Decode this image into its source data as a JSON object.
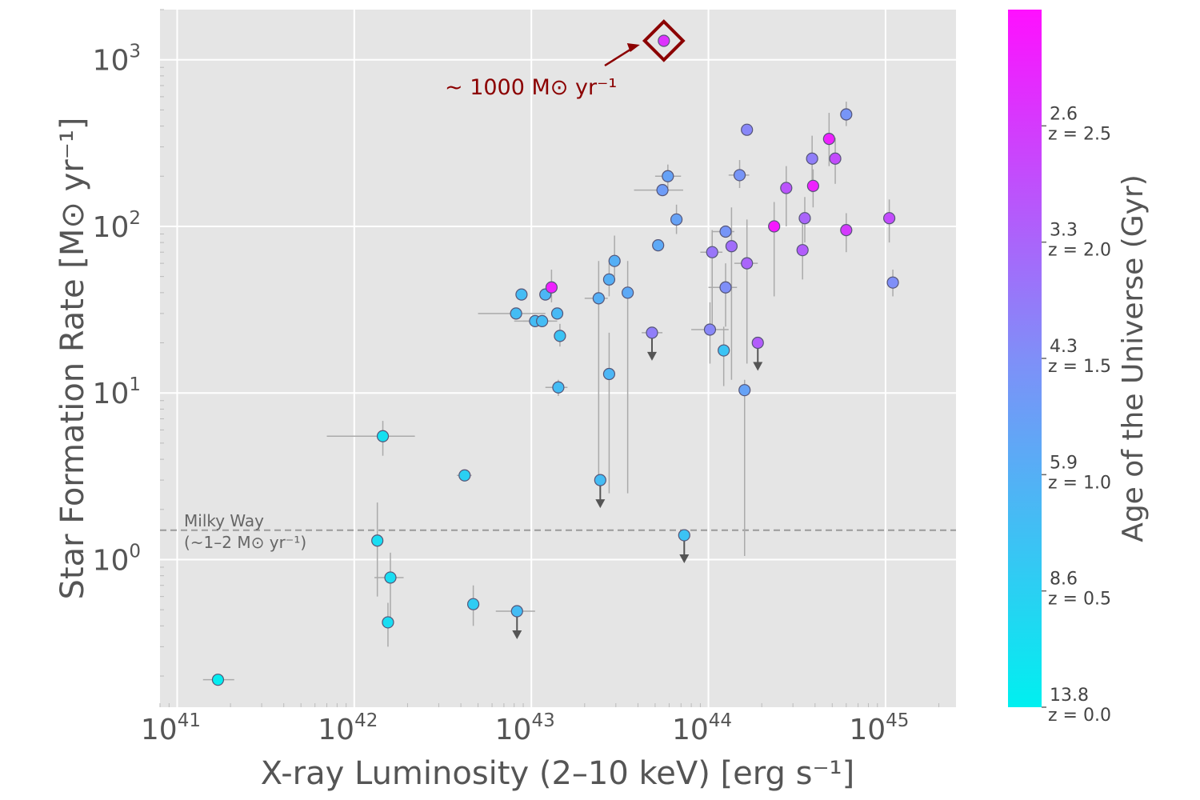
{
  "chart_data": {
    "type": "scatter",
    "xlabel": "X-ray Luminosity (2–10 keV) [erg s⁻¹]",
    "ylabel": "Star Formation Rate [M⊙ yr⁻¹]",
    "x_scale": "log",
    "y_scale": "log",
    "xlim": [
      8e+40,
      2.5e+45
    ],
    "ylim": [
      0.13,
      2000
    ],
    "grid": true,
    "x_ticks": [
      {
        "base": "10",
        "exp": "41",
        "value": 1e+41
      },
      {
        "base": "10",
        "exp": "42",
        "value": 1e+42
      },
      {
        "base": "10",
        "exp": "43",
        "value": 1e+43
      },
      {
        "base": "10",
        "exp": "44",
        "value": 1e+44
      },
      {
        "base": "10",
        "exp": "45",
        "value": 1e+45
      }
    ],
    "y_ticks": [
      {
        "base": "10",
        "exp": "0",
        "value": 1
      },
      {
        "base": "10",
        "exp": "1",
        "value": 10
      },
      {
        "base": "10",
        "exp": "2",
        "value": 100
      },
      {
        "base": "10",
        "exp": "3",
        "value": 1000
      }
    ],
    "colorbar": {
      "title": "Age of the Universe (Gyr)",
      "color_low": "#00f0f0",
      "color_mid": "#7f8ff8",
      "color_high": "#ff10ff",
      "ticks": [
        {
          "age": "13.8",
          "z": "z = 0.0",
          "z_value": 0.0
        },
        {
          "age": "8.6",
          "z": "z = 0.5",
          "z_value": 0.5
        },
        {
          "age": "5.9",
          "z": "z = 1.0",
          "z_value": 1.0
        },
        {
          "age": "4.3",
          "z": "z = 1.5",
          "z_value": 1.5
        },
        {
          "age": "3.3",
          "z": "z = 2.0",
          "z_value": 2.0
        },
        {
          "age": "2.6",
          "z": "z = 2.5",
          "z_value": 2.5
        }
      ],
      "z_range": [
        0.0,
        3.0
      ]
    },
    "reference_line": {
      "y": 1.5,
      "label_line1": "Milky Way",
      "label_line2": "(~1–2 M⊙ yr⁻¹)"
    },
    "highlight": {
      "x": 5.6e+43,
      "y": 1300,
      "label": "~ 1000 M⊙ yr⁻¹"
    },
    "points": [
      {
        "x": 1.7e+41,
        "y": 0.19,
        "z": 0.05,
        "xerr": [
          1.4e+41,
          2.1e+41
        ]
      },
      {
        "x": 1.35e+42,
        "y": 1.3,
        "z": 0.3,
        "yerr": [
          0.6,
          2.2
        ]
      },
      {
        "x": 1.45e+42,
        "y": 5.5,
        "z": 0.25,
        "xerr": [
          7e+41,
          2.2e+42
        ],
        "yerr": [
          4.2,
          6.8
        ]
      },
      {
        "x": 1.6e+42,
        "y": 0.78,
        "z": 0.3,
        "xerr": [
          1.3e+42,
          1.9e+42
        ],
        "yerr": [
          0.4,
          1.1
        ]
      },
      {
        "x": 1.55e+42,
        "y": 0.42,
        "z": 0.3,
        "yerr": [
          0.3,
          0.55
        ]
      },
      {
        "x": 4.2e+42,
        "y": 3.2,
        "z": 0.5,
        "xerr": [
          3.8e+42,
          4.6e+42
        ]
      },
      {
        "x": 4.7e+42,
        "y": 0.54,
        "z": 0.55,
        "yerr": [
          0.4,
          0.7
        ]
      },
      {
        "x": 8.3e+42,
        "y": 0.49,
        "z": 0.8,
        "xerr": [
          6.3e+42,
          1.05e+43
        ],
        "upper": true
      },
      {
        "x": 8.2e+42,
        "y": 30,
        "z": 0.8,
        "xerr": [
          5e+42,
          1.2e+43
        ]
      },
      {
        "x": 8.8e+42,
        "y": 39,
        "z": 0.8
      },
      {
        "x": 1.05e+43,
        "y": 27,
        "z": 0.8,
        "xerr": [
          8e+42,
          1.3e+43
        ]
      },
      {
        "x": 1.15e+43,
        "y": 27,
        "z": 0.8,
        "xerr": [
          9e+42,
          1.4e+43
        ]
      },
      {
        "x": 1.2e+43,
        "y": 39,
        "z": 0.9
      },
      {
        "x": 1.3e+43,
        "y": 43,
        "z": 2.8,
        "yerr": [
          35,
          55
        ]
      },
      {
        "x": 1.4e+43,
        "y": 30,
        "z": 0.85
      },
      {
        "x": 1.45e+43,
        "y": 22,
        "z": 0.7,
        "yerr": [
          19,
          26
        ]
      },
      {
        "x": 1.42e+43,
        "y": 10.8,
        "z": 0.8,
        "xerr": [
          1.2e+43,
          1.6e+43
        ],
        "yerr": [
          9.6,
          12
        ]
      },
      {
        "x": 2.4e+43,
        "y": 37,
        "z": 1.0,
        "xerr": [
          2e+43,
          2.7e+43
        ],
        "yerr": [
          3,
          62
        ]
      },
      {
        "x": 2.45e+43,
        "y": 3.0,
        "z": 0.8,
        "xerr": [
          2.3e+43,
          2.6e+43
        ],
        "upper": true
      },
      {
        "x": 2.75e+43,
        "y": 13,
        "z": 0.9,
        "yerr": [
          2.5,
          23
        ]
      },
      {
        "x": 2.75e+43,
        "y": 48,
        "z": 1.0,
        "yerr": [
          38,
          60
        ]
      },
      {
        "x": 2.95e+43,
        "y": 62,
        "z": 1.0,
        "yerr": [
          50,
          88
        ]
      },
      {
        "x": 3.5e+43,
        "y": 40,
        "z": 1.1,
        "yerr": [
          2.5,
          62
        ]
      },
      {
        "x": 4.8e+43,
        "y": 23,
        "z": 1.7,
        "xerr": [
          4.2e+43,
          5.5e+43
        ],
        "upper": true
      },
      {
        "x": 5.2e+43,
        "y": 77,
        "z": 1.1
      },
      {
        "x": 5.5e+43,
        "y": 165,
        "z": 1.3,
        "xerr": [
          3.8e+43,
          7.2e+43
        ]
      },
      {
        "x": 5.9e+43,
        "y": 200,
        "z": 1.2,
        "xerr": [
          5e+43,
          7e+43
        ],
        "yerr": [
          170,
          235
        ]
      },
      {
        "x": 6.6e+43,
        "y": 110,
        "z": 1.2,
        "yerr": [
          90,
          135
        ]
      },
      {
        "x": 7.3e+43,
        "y": 1.4,
        "z": 0.7,
        "upper": true
      },
      {
        "x": 1.02e+44,
        "y": 24,
        "z": 1.6,
        "xerr": [
          8e+43,
          1.3e+44
        ],
        "yerr": [
          15,
          35
        ]
      },
      {
        "x": 1.05e+44,
        "y": 70,
        "z": 1.8,
        "xerr": [
          9e+43,
          1.2e+44
        ],
        "yerr": [
          25,
          95
        ]
      },
      {
        "x": 1.25e+44,
        "y": 93,
        "z": 1.4,
        "xerr": [
          1.05e+44,
          1.4e+44
        ]
      },
      {
        "x": 1.22e+44,
        "y": 18,
        "z": 0.7,
        "yerr": [
          11,
          25
        ]
      },
      {
        "x": 1.25e+44,
        "y": 43,
        "z": 1.5,
        "xerr": [
          1e+44,
          1.45e+44
        ],
        "yerr": [
          25,
          60
        ]
      },
      {
        "x": 1.35e+44,
        "y": 76,
        "z": 1.9,
        "yerr": [
          12,
          130
        ]
      },
      {
        "x": 1.5e+44,
        "y": 203,
        "z": 1.4,
        "xerr": [
          1.3e+44,
          1.7e+44
        ],
        "yerr": [
          170,
          250
        ]
      },
      {
        "x": 1.6e+44,
        "y": 10.4,
        "z": 1.2,
        "yerr": [
          1.05,
          12
        ]
      },
      {
        "x": 1.65e+44,
        "y": 380,
        "z": 1.6
      },
      {
        "x": 1.65e+44,
        "y": 60,
        "z": 2.0,
        "xerr": [
          1.4e+44,
          1.9e+44
        ],
        "yerr": [
          15,
          110
        ]
      },
      {
        "x": 1.9e+44,
        "y": 20,
        "z": 2.1,
        "upper": true
      },
      {
        "x": 2.35e+44,
        "y": 100,
        "z": 2.9,
        "yerr": [
          38,
          140
        ]
      },
      {
        "x": 2.75e+44,
        "y": 170,
        "z": 2.2,
        "yerr": [
          100,
          230
        ]
      },
      {
        "x": 3.4e+44,
        "y": 72,
        "z": 2.1,
        "yerr": [
          48,
          110
        ]
      },
      {
        "x": 3.5e+44,
        "y": 112,
        "z": 2.0,
        "yerr": [
          80,
          150
        ]
      },
      {
        "x": 3.85e+44,
        "y": 255,
        "z": 1.7,
        "yerr": [
          160,
          350
        ]
      },
      {
        "x": 3.9e+44,
        "y": 175,
        "z": 2.8,
        "yerr": [
          130,
          220
        ]
      },
      {
        "x": 4.8e+44,
        "y": 335,
        "z": 2.8,
        "yerr": [
          230,
          480
        ]
      },
      {
        "x": 5.2e+44,
        "y": 255,
        "z": 2.3,
        "yerr": [
          180,
          340
        ]
      },
      {
        "x": 6e+44,
        "y": 95,
        "z": 2.5,
        "yerr": [
          70,
          120
        ]
      },
      {
        "x": 6e+44,
        "y": 470,
        "z": 1.4,
        "yerr": [
          400,
          560
        ]
      },
      {
        "x": 1.05e+45,
        "y": 112,
        "z": 2.3,
        "yerr": [
          80,
          145
        ]
      },
      {
        "x": 1.1e+45,
        "y": 46,
        "z": 1.5,
        "yerr": [
          38,
          55
        ]
      },
      {
        "x": 5.6e+43,
        "y": 1300,
        "z": 2.6
      }
    ]
  }
}
